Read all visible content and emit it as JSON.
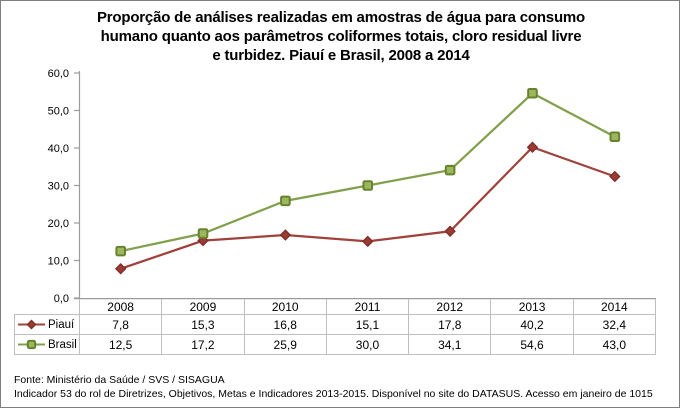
{
  "frame": {
    "border_color": "#7F7F7F",
    "background": "#FFFFFF"
  },
  "header": {
    "title_lines": [
      "Proporção de análises realizadas em amostras de água para consumo",
      "humano quanto aos parâmetros coliformes totais, cloro residual livre",
      "e turbidez. Piauí e Brasil, 2008 a 2014"
    ]
  },
  "chart_data": {
    "type": "line",
    "title": "Proporção de análises realizadas em amostras de água para consumo humano quanto aos parâmetros coliformes totais, cloro residual livre e turbidez. Piauí e Brasil, 2008 a 2014",
    "categories": [
      "2008",
      "2009",
      "2010",
      "2011",
      "2012",
      "2013",
      "2014"
    ],
    "series": [
      {
        "name": "Piauí",
        "marker": "diamond",
        "color": "#A0413A",
        "marker_fill": "#9C3A34",
        "marker_stroke": "#7E2D28",
        "values": [
          7.8,
          15.3,
          16.8,
          15.1,
          17.8,
          40.2,
          32.4
        ],
        "display": [
          "7,8",
          "15,3",
          "16,8",
          "15,1",
          "17,8",
          "40,2",
          "32,4"
        ]
      },
      {
        "name": "Brasil",
        "marker": "square",
        "color": "#82A04B",
        "marker_fill": "#9CB85E",
        "marker_stroke": "#68822F",
        "values": [
          12.5,
          17.2,
          25.9,
          30.0,
          34.1,
          54.6,
          43.0
        ],
        "display": [
          "12,5",
          "17,2",
          "25,9",
          "30,0",
          "34,1",
          "54,6",
          "43,0"
        ]
      }
    ],
    "ylim": [
      0,
      60
    ],
    "ytick_labels": [
      "0,0",
      "10,0",
      "20,0",
      "30,0",
      "40,0",
      "50,0",
      "60,0"
    ],
    "grid": false,
    "legend_position": "table-left",
    "axis_color": "#9C9C9C",
    "table_border_color": "#BFBFBF"
  },
  "footer": {
    "line1": "Fonte: Ministério da Saúde / SVS / SISAGUA",
    "line2": "Indicador 53 do rol de Diretrizes, Objetivos, Metas e Indicadores 2013-2015. Disponível no site do DATASUS. Acesso em janeiro de 1015"
  }
}
